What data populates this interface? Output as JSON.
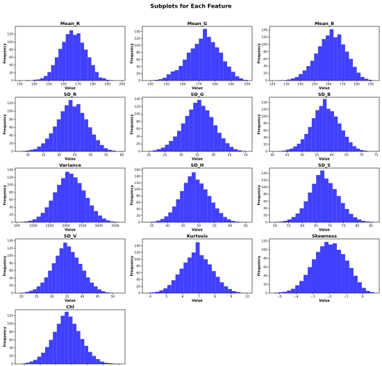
{
  "title": "Subplots for Each Feature",
  "chart_data": [
    {
      "type": "histogram",
      "title": "Mean_R",
      "x_label": "Value",
      "y_label": "Frequency",
      "color": "#4040ff",
      "bins": [
        134,
        136.5,
        139,
        141.5,
        144,
        146.5,
        149,
        151.5,
        154,
        156.5,
        159,
        161.5,
        164,
        166.5,
        169,
        171.5,
        174,
        176.5,
        179,
        181.5,
        184,
        186.5,
        189,
        191.5,
        194
      ],
      "values": [
        1,
        0,
        2,
        3,
        6,
        12,
        22,
        40,
        60,
        82,
        100,
        120,
        130,
        118,
        122,
        98,
        80,
        60,
        40,
        22,
        8,
        6,
        2,
        1
      ],
      "xlim": [
        127,
        202
      ],
      "xticks": [
        130,
        140,
        150,
        160,
        170,
        180,
        190,
        200
      ],
      "ylim": [
        0,
        140
      ],
      "yticks": [
        0,
        20,
        40,
        60,
        80,
        100,
        120
      ]
    },
    {
      "type": "histogram",
      "title": "Mean_G",
      "x_label": "Value",
      "y_label": "Frequency",
      "color": "#4040ff",
      "bins": [
        140,
        142.5,
        145,
        147.5,
        150,
        152.5,
        155,
        157.5,
        160,
        162.5,
        165,
        167.5,
        170,
        172.5,
        175,
        177.5,
        180,
        182.5,
        185,
        187.5,
        190,
        192.5,
        195,
        197.5,
        200
      ],
      "values": [
        1,
        2,
        4,
        8,
        18,
        26,
        30,
        42,
        60,
        80,
        92,
        105,
        120,
        148,
        125,
        110,
        95,
        80,
        55,
        40,
        25,
        12,
        6,
        2
      ],
      "xlim": [
        135,
        203
      ],
      "xticks": [
        140,
        150,
        160,
        170,
        180,
        190,
        200
      ],
      "ylim": [
        0,
        155
      ],
      "yticks": [
        0,
        20,
        40,
        60,
        80,
        100,
        120,
        140
      ]
    },
    {
      "type": "histogram",
      "title": "Mean_B",
      "x_label": "Value",
      "y_label": "Frequency",
      "color": "#4040ff",
      "bins": [
        125,
        127.75,
        130.5,
        133.25,
        136,
        138.75,
        141.5,
        144.25,
        147,
        149.75,
        152.5,
        155.25,
        158,
        160.75,
        163.5,
        166.25,
        169,
        171.75,
        174.5,
        177.25,
        180,
        182.75,
        185.5,
        188.25,
        191
      ],
      "values": [
        1,
        1,
        3,
        6,
        10,
        18,
        28,
        40,
        55,
        75,
        95,
        115,
        125,
        142,
        120,
        128,
        100,
        80,
        60,
        38,
        22,
        10,
        5,
        2
      ],
      "xlim": [
        118,
        196
      ],
      "xticks": [
        120,
        130,
        140,
        150,
        160,
        170,
        180,
        190
      ],
      "ylim": [
        0,
        150
      ],
      "yticks": [
        0,
        20,
        40,
        60,
        80,
        100,
        120,
        140
      ]
    },
    {
      "type": "histogram",
      "title": "SD_R",
      "x_label": "Value",
      "y_label": "Frequency",
      "color": "#4040ff",
      "bins": [
        28,
        29.25,
        30.5,
        31.75,
        33,
        34.25,
        35.5,
        36.75,
        38,
        39.25,
        40.5,
        41.75,
        43,
        44.25,
        45.5,
        46.75,
        48,
        49.25,
        50.5,
        51.75,
        53,
        54.25,
        55.5,
        56.75,
        58
      ],
      "values": [
        1,
        2,
        4,
        6,
        12,
        20,
        32,
        45,
        62,
        80,
        100,
        115,
        128,
        112,
        118,
        96,
        80,
        60,
        42,
        28,
        16,
        8,
        4,
        2
      ],
      "xlim": [
        26,
        61
      ],
      "xticks": [
        30,
        35,
        40,
        45,
        50,
        55,
        60
      ],
      "ylim": [
        0,
        135
      ],
      "yticks": [
        0,
        20,
        40,
        60,
        80,
        100,
        120
      ]
    },
    {
      "type": "histogram",
      "title": "SD_G",
      "x_label": "Value",
      "y_label": "Frequency",
      "color": "#4040ff",
      "bins": [
        20,
        21.25,
        22.5,
        23.75,
        25,
        26.25,
        27.5,
        28.75,
        30,
        31.25,
        32.5,
        33.75,
        35,
        36.25,
        37.5,
        38.75,
        40,
        41.25,
        42.5,
        43.75,
        45,
        46.25,
        47.5,
        48.75,
        50
      ],
      "values": [
        1,
        3,
        6,
        10,
        18,
        28,
        40,
        55,
        75,
        95,
        112,
        130,
        138,
        122,
        110,
        92,
        70,
        50,
        35,
        22,
        12,
        6,
        3,
        1
      ],
      "xlim": [
        18,
        52
      ],
      "xticks": [
        20,
        25,
        30,
        35,
        40,
        45,
        50
      ],
      "ylim": [
        0,
        145
      ],
      "yticks": [
        0,
        20,
        40,
        60,
        80,
        100,
        120,
        140
      ]
    },
    {
      "type": "histogram",
      "title": "SD_B",
      "x_label": "Value",
      "y_label": "Frequency",
      "color": "#4040ff",
      "bins": [
        42,
        43.25,
        44.5,
        45.75,
        47,
        48.25,
        49.5,
        50.75,
        52,
        53.25,
        54.5,
        55.75,
        57,
        58.25,
        59.5,
        60.75,
        62,
        63.25,
        64.5,
        65.75,
        67,
        68.25,
        69.5,
        70.75,
        72
      ],
      "values": [
        1,
        2,
        5,
        8,
        14,
        22,
        35,
        50,
        70,
        95,
        118,
        130,
        150,
        122,
        115,
        100,
        80,
        60,
        42,
        26,
        15,
        8,
        4,
        2
      ],
      "xlim": [
        39,
        76
      ],
      "xticks": [
        40,
        45,
        50,
        55,
        60,
        65,
        70,
        75
      ],
      "ylim": [
        0,
        155
      ],
      "yticks": [
        0,
        20,
        40,
        60,
        80,
        100,
        120,
        140
      ]
    },
    {
      "type": "histogram",
      "title": "Variance",
      "x_label": "Value",
      "y_label": "Frequency",
      "color": "#4040ff",
      "bins": [
        600,
        725,
        850,
        975,
        1100,
        1225,
        1350,
        1475,
        1600,
        1725,
        1850,
        1975,
        2100,
        2225,
        2350,
        2475,
        2600,
        2725,
        2850,
        2975,
        3100,
        3225,
        3350,
        3475,
        3600
      ],
      "values": [
        1,
        2,
        4,
        8,
        15,
        25,
        40,
        58,
        80,
        100,
        118,
        135,
        130,
        120,
        105,
        85,
        65,
        45,
        30,
        18,
        10,
        5,
        2,
        1
      ],
      "xlim": [
        450,
        3800
      ],
      "xticks": [
        500,
        1000,
        1500,
        2000,
        2500,
        3000,
        3500
      ],
      "ylim": [
        0,
        145
      ],
      "yticks": [
        0,
        20,
        40,
        60,
        80,
        100,
        120,
        140
      ]
    },
    {
      "type": "histogram",
      "title": "SD_H",
      "x_label": "Value",
      "y_label": "Frequency",
      "color": "#4040ff",
      "bins": [
        34,
        35.25,
        36.5,
        37.75,
        39,
        40.25,
        41.5,
        42.75,
        44,
        45.25,
        46.5,
        47.75,
        49,
        50.25,
        51.5,
        52.75,
        54,
        55.25,
        56.5,
        57.75,
        59,
        60.25,
        61.5,
        62.75,
        64
      ],
      "values": [
        1,
        2,
        5,
        10,
        18,
        30,
        48,
        70,
        95,
        120,
        140,
        152,
        130,
        118,
        100,
        80,
        60,
        42,
        28,
        16,
        9,
        4,
        2,
        1
      ],
      "xlim": [
        32,
        67
      ],
      "xticks": [
        35,
        40,
        45,
        50,
        55,
        60,
        65
      ],
      "ylim": [
        0,
        165
      ],
      "yticks": [
        0,
        20,
        40,
        60,
        80,
        100,
        120,
        140,
        160
      ]
    },
    {
      "type": "histogram",
      "title": "SD_S",
      "x_label": "Value",
      "y_label": "Frequency",
      "color": "#4040ff",
      "bins": [
        50,
        51.5,
        53,
        54.5,
        56,
        57.5,
        59,
        60.5,
        62,
        63.5,
        65,
        66.5,
        68,
        69.5,
        71,
        72.5,
        74,
        75.5,
        77,
        78.5,
        80,
        81.5,
        83,
        84.5,
        86
      ],
      "values": [
        1,
        2,
        4,
        8,
        15,
        25,
        40,
        60,
        85,
        110,
        135,
        148,
        125,
        112,
        95,
        75,
        55,
        38,
        24,
        14,
        8,
        4,
        2,
        1
      ],
      "xlim": [
        48,
        88
      ],
      "xticks": [
        50,
        55,
        60,
        65,
        70,
        75,
        80,
        85
      ],
      "ylim": [
        0,
        155
      ],
      "yticks": [
        0,
        20,
        40,
        60,
        80,
        100,
        120,
        140
      ]
    },
    {
      "type": "histogram",
      "title": "SD_V",
      "x_label": "Value",
      "y_label": "Frequency",
      "color": "#4040ff",
      "bins": [
        20,
        21.25,
        22.5,
        23.75,
        25,
        26.25,
        27.5,
        28.75,
        30,
        31.25,
        32.5,
        33.75,
        35,
        36.25,
        37.5,
        38.75,
        40,
        41.25,
        42.5,
        43.75,
        45,
        46.25,
        47.5,
        48.75,
        50
      ],
      "values": [
        1,
        3,
        6,
        10,
        18,
        28,
        42,
        60,
        80,
        100,
        120,
        135,
        125,
        110,
        95,
        78,
        60,
        42,
        28,
        18,
        10,
        5,
        2,
        1
      ],
      "xlim": [
        18,
        54
      ],
      "xticks": [
        20,
        25,
        30,
        35,
        40,
        45,
        50
      ],
      "ylim": [
        0,
        145
      ],
      "yticks": [
        0,
        20,
        40,
        60,
        80,
        100,
        120,
        140
      ]
    },
    {
      "type": "histogram",
      "title": "Kurtosis",
      "x_label": "Value",
      "y_label": "Frequency",
      "color": "#4040ff",
      "bins": [
        3.8,
        4.05,
        4.3,
        4.55,
        4.8,
        5.05,
        5.3,
        5.55,
        5.8,
        6.05,
        6.3,
        6.55,
        6.8,
        7.05,
        7.3,
        7.55,
        7.8,
        8.05,
        8.3,
        8.55,
        8.8,
        9.05,
        9.3,
        9.55,
        9.8
      ],
      "values": [
        1,
        2,
        4,
        8,
        14,
        24,
        38,
        55,
        72,
        90,
        105,
        120,
        150,
        112,
        100,
        85,
        65,
        48,
        32,
        20,
        12,
        6,
        3,
        1
      ],
      "xlim": [
        3.5,
        10.3
      ],
      "xticks": [
        4,
        5,
        6,
        7,
        8,
        9,
        10
      ],
      "ylim": [
        0,
        160
      ],
      "yticks": [
        0,
        20,
        40,
        60,
        80,
        100,
        120,
        140
      ]
    },
    {
      "type": "histogram",
      "title": "Skewness",
      "x_label": "Value",
      "y_label": "Frequency",
      "color": "#4040ff",
      "bins": [
        -5.3,
        -5.05,
        -4.8,
        -4.55,
        -4.3,
        -4.05,
        -3.8,
        -3.55,
        -3.3,
        -3.05,
        -2.8,
        -2.55,
        -2.3,
        -2.05,
        -1.8,
        -1.55,
        -1.3,
        -1.05,
        -0.8,
        -0.55,
        -0.3,
        -0.05,
        0.2,
        0.45,
        0.7
      ],
      "values": [
        1,
        2,
        3,
        6,
        10,
        18,
        28,
        42,
        60,
        78,
        95,
        108,
        118,
        112,
        115,
        100,
        90,
        75,
        58,
        40,
        25,
        12,
        5,
        2
      ],
      "xlim": [
        -5.6,
        1.0
      ],
      "xticks": [
        {
          "value": -5,
          "label": "−5"
        },
        {
          "value": -4,
          "label": "−4"
        },
        {
          "value": -3,
          "label": "−3"
        },
        {
          "value": -2,
          "label": "−2"
        },
        {
          "value": -1,
          "label": "−1"
        },
        0
      ],
      "ylim": [
        0,
        125
      ],
      "yticks": [
        0,
        20,
        40,
        60,
        80,
        100,
        120
      ]
    },
    {
      "type": "histogram",
      "title": "Chl",
      "x_label": "Value",
      "y_label": "Frequency",
      "color": "#4040ff",
      "bins": [
        19,
        20.25,
        21.5,
        22.75,
        24,
        25.25,
        26.5,
        27.75,
        29,
        30.25,
        31.5,
        32.75,
        34,
        35.25,
        36.5,
        37.75,
        39,
        40.25,
        41.5,
        42.75,
        44,
        45.25,
        46.5,
        47.75,
        49
      ],
      "values": [
        1,
        3,
        6,
        10,
        18,
        28,
        42,
        60,
        80,
        100,
        120,
        130,
        118,
        100,
        82,
        62,
        45,
        30,
        20,
        12,
        6,
        3,
        2,
        1
      ],
      "xlim": [
        17,
        52
      ],
      "xticks": [
        20,
        25,
        30,
        35,
        40,
        45,
        50
      ],
      "ylim": [
        0,
        135
      ],
      "yticks": [
        0,
        20,
        40,
        60,
        80,
        100,
        120
      ]
    }
  ]
}
